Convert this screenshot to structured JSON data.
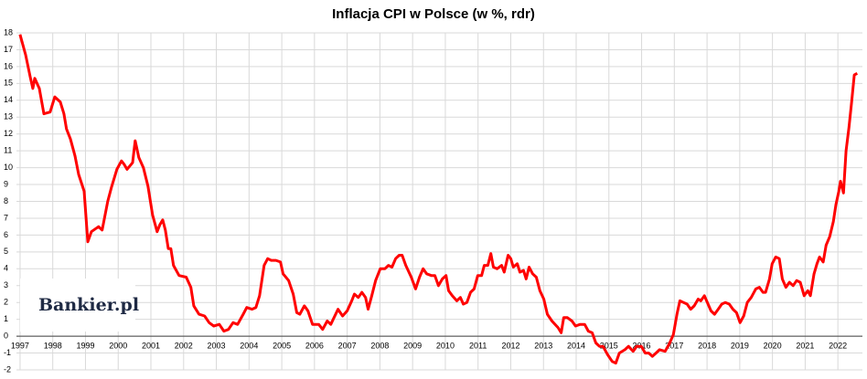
{
  "chart_data": {
    "type": "line",
    "title": "Inflacja CPI w Polsce (w %, rdr)",
    "watermark": "Bankier.pl",
    "xlim": [
      1996.89,
      2022.75
    ],
    "ylim": [
      -2,
      18
    ],
    "xticks": [
      1997,
      1998,
      1999,
      2000,
      2001,
      2002,
      2003,
      2004,
      2005,
      2006,
      2007,
      2008,
      2009,
      2010,
      2011,
      2012,
      2013,
      2014,
      2015,
      2016,
      2017,
      2018,
      2019,
      2020,
      2021,
      2022
    ],
    "yticks": [
      -2,
      -1,
      0,
      1,
      2,
      3,
      4,
      5,
      6,
      7,
      8,
      9,
      10,
      11,
      12,
      13,
      14,
      15,
      16,
      17,
      18
    ],
    "grid": true,
    "series": [
      {
        "name": "CPI",
        "color": "#ff0000",
        "x": [
          1997.0,
          1997.17,
          1997.31,
          1997.39,
          1997.45,
          1997.59,
          1997.73,
          1997.92,
          1998.06,
          1998.23,
          1998.34,
          1998.42,
          1998.54,
          1998.68,
          1998.79,
          1998.96,
          1999.07,
          1999.18,
          1999.4,
          1999.51,
          1999.68,
          1999.79,
          1999.96,
          2000.1,
          2000.18,
          2000.27,
          2000.44,
          2000.52,
          2000.63,
          2000.77,
          2000.91,
          2001.05,
          2001.19,
          2001.27,
          2001.36,
          2001.44,
          2001.53,
          2001.61,
          2001.69,
          2001.86,
          2002.08,
          2002.22,
          2002.31,
          2002.47,
          2002.64,
          2002.78,
          2002.92,
          2003.09,
          2003.23,
          2003.37,
          2003.51,
          2003.65,
          2003.82,
          2003.93,
          2004.09,
          2004.21,
          2004.32,
          2004.46,
          2004.57,
          2004.68,
          2004.82,
          2004.96,
          2005.04,
          2005.21,
          2005.35,
          2005.46,
          2005.55,
          2005.69,
          2005.8,
          2005.94,
          2006.13,
          2006.25,
          2006.39,
          2006.5,
          2006.72,
          2006.86,
          2007.0,
          2007.14,
          2007.22,
          2007.34,
          2007.45,
          2007.56,
          2007.64,
          2007.75,
          2007.87,
          2008.01,
          2008.15,
          2008.26,
          2008.37,
          2008.48,
          2008.59,
          2008.68,
          2008.79,
          2008.96,
          2009.09,
          2009.21,
          2009.32,
          2009.43,
          2009.57,
          2009.68,
          2009.79,
          2009.91,
          2010.02,
          2010.1,
          2010.21,
          2010.35,
          2010.46,
          2010.55,
          2010.66,
          2010.77,
          2010.88,
          2010.99,
          2011.11,
          2011.19,
          2011.3,
          2011.39,
          2011.47,
          2011.58,
          2011.72,
          2011.8,
          2011.92,
          2012.0,
          2012.08,
          2012.2,
          2012.28,
          2012.39,
          2012.47,
          2012.56,
          2012.67,
          2012.78,
          2012.89,
          2013.01,
          2013.12,
          2013.26,
          2013.45,
          2013.54,
          2013.62,
          2013.73,
          2013.87,
          2013.98,
          2014.12,
          2014.26,
          2014.37,
          2014.49,
          2014.6,
          2014.71,
          2014.82,
          2014.96,
          2015.1,
          2015.21,
          2015.32,
          2015.49,
          2015.6,
          2015.74,
          2015.85,
          2015.99,
          2016.11,
          2016.22,
          2016.33,
          2016.44,
          2016.55,
          2016.72,
          2016.86,
          2016.97,
          2017.08,
          2017.17,
          2017.28,
          2017.39,
          2017.5,
          2017.61,
          2017.73,
          2017.81,
          2017.92,
          2018.03,
          2018.12,
          2018.23,
          2018.34,
          2018.45,
          2018.56,
          2018.68,
          2018.79,
          2018.9,
          2019.01,
          2019.12,
          2019.23,
          2019.35,
          2019.49,
          2019.6,
          2019.71,
          2019.79,
          2019.91,
          2019.99,
          2020.1,
          2020.21,
          2020.3,
          2020.41,
          2020.52,
          2020.63,
          2020.74,
          2020.85,
          2020.97,
          2021.08,
          2021.16,
          2021.27,
          2021.36,
          2021.44,
          2021.55,
          2021.64,
          2021.75,
          2021.86,
          2021.94,
          2022.03,
          2022.08,
          2022.17,
          2022.25,
          2022.34,
          2022.42,
          2022.5,
          2022.59
        ],
        "values": [
          17.9,
          16.7,
          15.4,
          14.7,
          15.3,
          14.7,
          13.2,
          13.3,
          14.2,
          13.9,
          13.2,
          12.3,
          11.7,
          10.7,
          9.6,
          8.6,
          5.6,
          6.2,
          6.5,
          6.3,
          8.0,
          8.8,
          9.9,
          10.4,
          10.2,
          9.9,
          10.3,
          11.6,
          10.6,
          10.0,
          8.9,
          7.2,
          6.2,
          6.6,
          6.9,
          6.3,
          5.2,
          5.2,
          4.2,
          3.6,
          3.5,
          2.9,
          1.8,
          1.3,
          1.2,
          0.8,
          0.6,
          0.7,
          0.3,
          0.4,
          0.8,
          0.7,
          1.3,
          1.7,
          1.6,
          1.7,
          2.4,
          4.2,
          4.6,
          4.5,
          4.5,
          4.4,
          3.7,
          3.3,
          2.5,
          1.4,
          1.3,
          1.8,
          1.5,
          0.7,
          0.7,
          0.4,
          0.9,
          0.7,
          1.6,
          1.2,
          1.5,
          2.1,
          2.5,
          2.3,
          2.6,
          2.3,
          1.6,
          2.4,
          3.3,
          4.0,
          4.0,
          4.2,
          4.1,
          4.6,
          4.8,
          4.8,
          4.2,
          3.5,
          2.8,
          3.5,
          4.0,
          3.7,
          3.6,
          3.6,
          3.0,
          3.4,
          3.6,
          2.7,
          2.4,
          2.1,
          2.3,
          1.9,
          2.0,
          2.6,
          2.8,
          3.6,
          3.6,
          4.2,
          4.2,
          4.9,
          4.1,
          4.0,
          4.2,
          3.8,
          4.8,
          4.6,
          4.1,
          4.3,
          3.8,
          3.9,
          3.4,
          4.1,
          3.7,
          3.5,
          2.7,
          2.2,
          1.3,
          0.9,
          0.5,
          0.2,
          1.1,
          1.1,
          0.9,
          0.6,
          0.7,
          0.7,
          0.3,
          0.2,
          -0.4,
          -0.6,
          -0.6,
          -1.1,
          -1.5,
          -1.6,
          -1.0,
          -0.8,
          -0.6,
          -0.9,
          -0.6,
          -0.6,
          -1.0,
          -1.0,
          -1.2,
          -1.0,
          -0.8,
          -0.9,
          -0.4,
          0.1,
          1.3,
          2.1,
          2.0,
          1.9,
          1.6,
          1.8,
          2.2,
          2.1,
          2.4,
          1.9,
          1.5,
          1.3,
          1.6,
          1.9,
          2.0,
          1.9,
          1.6,
          1.4,
          0.8,
          1.2,
          2.0,
          2.3,
          2.8,
          2.9,
          2.6,
          2.6,
          3.4,
          4.3,
          4.7,
          4.6,
          3.4,
          2.9,
          3.2,
          3.0,
          3.3,
          3.2,
          2.4,
          2.7,
          2.4,
          3.7,
          4.3,
          4.7,
          4.4,
          5.4,
          5.9,
          6.8,
          7.8,
          8.6,
          9.2,
          8.5,
          11.0,
          12.4,
          13.9,
          15.5,
          15.6
        ]
      }
    ]
  }
}
